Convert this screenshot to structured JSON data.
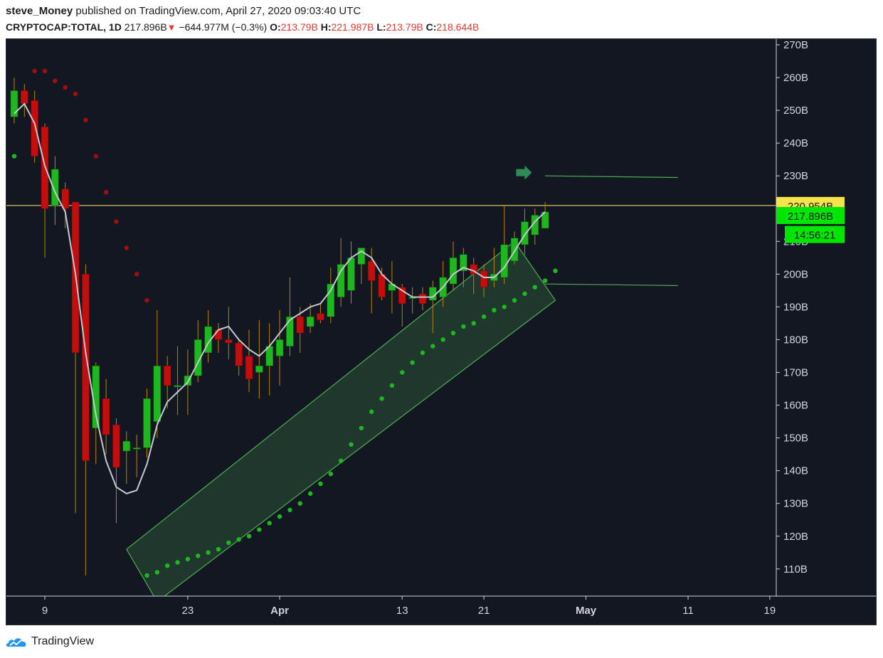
{
  "header": {
    "author": "steve_Money",
    "published_text": "published on TradingView.com, April 27, 2020 09:03:40 UTC",
    "symbol": "CRYPTOCAP:TOTAL, 1D",
    "last": "217.896B",
    "down_arrow": "▼",
    "change": "−644.977M (−0.3%)",
    "o_label": "O:",
    "o_value": "213.79B",
    "h_label": "H:",
    "h_value": "221.987B",
    "l_label": "L:",
    "l_value": "213.79B",
    "c_label": "C:",
    "c_value": "218.644B"
  },
  "footer": {
    "brand": "TradingView",
    "logo_icon": "tradingview-cloud-icon"
  },
  "chart_data": {
    "type": "candlestick",
    "y_unit": "B",
    "ylim": [
      102,
      272
    ],
    "y_ticks": [
      "110B",
      "120B",
      "130B",
      "140B",
      "150B",
      "160B",
      "170B",
      "180B",
      "190B",
      "200B",
      "210B",
      "220B",
      "230B",
      "240B",
      "250B",
      "260B",
      "270B"
    ],
    "x_ticks": [
      "9",
      "23",
      "Apr",
      "13",
      "21",
      "May",
      "11",
      "19"
    ],
    "x_dates": [
      "2020-03-09",
      "2020-03-23",
      "2020-04-01",
      "2020-04-13",
      "2020-04-21",
      "2020-05-01",
      "2020-05-11",
      "2020-05-19"
    ],
    "candles": [
      {
        "date": "2020-03-06",
        "o": 248,
        "h": 260,
        "l": 246,
        "c": 256
      },
      {
        "date": "2020-03-07",
        "o": 256,
        "h": 258,
        "l": 248,
        "c": 252
      },
      {
        "date": "2020-03-08",
        "o": 253,
        "h": 256,
        "l": 234,
        "c": 236
      },
      {
        "date": "2020-03-09",
        "o": 245,
        "h": 246,
        "l": 205,
        "c": 220
      },
      {
        "date": "2020-03-10",
        "o": 221,
        "h": 236,
        "l": 215,
        "c": 232
      },
      {
        "date": "2020-03-11",
        "o": 226,
        "h": 228,
        "l": 214,
        "c": 220
      },
      {
        "date": "2020-03-12",
        "o": 222,
        "h": 222,
        "l": 127,
        "c": 176
      },
      {
        "date": "2020-03-13",
        "o": 200,
        "h": 203,
        "l": 108,
        "c": 143
      },
      {
        "date": "2020-03-14",
        "o": 153,
        "h": 173,
        "l": 142,
        "c": 172
      },
      {
        "date": "2020-03-15",
        "o": 162,
        "h": 168,
        "l": 145,
        "c": 151
      },
      {
        "date": "2020-03-16",
        "o": 154,
        "h": 156,
        "l": 124,
        "c": 141
      },
      {
        "date": "2020-03-17",
        "o": 146,
        "h": 152,
        "l": 136,
        "c": 149
      },
      {
        "date": "2020-03-18",
        "o": 147,
        "h": 151,
        "l": 138,
        "c": 147
      },
      {
        "date": "2020-03-19",
        "o": 147,
        "h": 165,
        "l": 144,
        "c": 162
      },
      {
        "date": "2020-03-20",
        "o": 155,
        "h": 189,
        "l": 150,
        "c": 172
      },
      {
        "date": "2020-03-21",
        "o": 172,
        "h": 175,
        "l": 159,
        "c": 166
      },
      {
        "date": "2020-03-22",
        "o": 166,
        "h": 178,
        "l": 157,
        "c": 166
      },
      {
        "date": "2020-03-23",
        "o": 166,
        "h": 177,
        "l": 157,
        "c": 169
      },
      {
        "date": "2020-03-24",
        "o": 169,
        "h": 186,
        "l": 167,
        "c": 180
      },
      {
        "date": "2020-03-25",
        "o": 176,
        "h": 189,
        "l": 173,
        "c": 184
      },
      {
        "date": "2020-03-26",
        "o": 183,
        "h": 185,
        "l": 176,
        "c": 180
      },
      {
        "date": "2020-03-27",
        "o": 180,
        "h": 190,
        "l": 174,
        "c": 179
      },
      {
        "date": "2020-03-28",
        "o": 179,
        "h": 180,
        "l": 169,
        "c": 172
      },
      {
        "date": "2020-03-29",
        "o": 175,
        "h": 183,
        "l": 164,
        "c": 168
      },
      {
        "date": "2020-03-30",
        "o": 170,
        "h": 186,
        "l": 162,
        "c": 172
      },
      {
        "date": "2020-03-31",
        "o": 172,
        "h": 185,
        "l": 163,
        "c": 178
      },
      {
        "date": "2020-04-01",
        "o": 175,
        "h": 189,
        "l": 166,
        "c": 180
      },
      {
        "date": "2020-04-02",
        "o": 178,
        "h": 199,
        "l": 175,
        "c": 187
      },
      {
        "date": "2020-04-03",
        "o": 187,
        "h": 190,
        "l": 176,
        "c": 182
      },
      {
        "date": "2020-04-04",
        "o": 184,
        "h": 191,
        "l": 182,
        "c": 187
      },
      {
        "date": "2020-04-05",
        "o": 188,
        "h": 191,
        "l": 185,
        "c": 186
      },
      {
        "date": "2020-04-06",
        "o": 187,
        "h": 202,
        "l": 185,
        "c": 197
      },
      {
        "date": "2020-04-07",
        "o": 193,
        "h": 211,
        "l": 190,
        "c": 203
      },
      {
        "date": "2020-04-08",
        "o": 195,
        "h": 210,
        "l": 191,
        "c": 205
      },
      {
        "date": "2020-04-09",
        "o": 203,
        "h": 208,
        "l": 197,
        "c": 208
      },
      {
        "date": "2020-04-10",
        "o": 204,
        "h": 208,
        "l": 188,
        "c": 198
      },
      {
        "date": "2020-04-11",
        "o": 200,
        "h": 202,
        "l": 192,
        "c": 193
      },
      {
        "date": "2020-04-12",
        "o": 195,
        "h": 204,
        "l": 188,
        "c": 197
      },
      {
        "date": "2020-04-13",
        "o": 196,
        "h": 197,
        "l": 184,
        "c": 191
      },
      {
        "date": "2020-04-14",
        "o": 193,
        "h": 196,
        "l": 188,
        "c": 193
      },
      {
        "date": "2020-04-15",
        "o": 194,
        "h": 196,
        "l": 189,
        "c": 191
      },
      {
        "date": "2020-04-16",
        "o": 192,
        "h": 198,
        "l": 182,
        "c": 196
      },
      {
        "date": "2020-04-17",
        "o": 193,
        "h": 204,
        "l": 190,
        "c": 199
      },
      {
        "date": "2020-04-18",
        "o": 197,
        "h": 210,
        "l": 195,
        "c": 205
      },
      {
        "date": "2020-04-19",
        "o": 201,
        "h": 208,
        "l": 196,
        "c": 206
      },
      {
        "date": "2020-04-20",
        "o": 203,
        "h": 205,
        "l": 194,
        "c": 200
      },
      {
        "date": "2020-04-21",
        "o": 201,
        "h": 203,
        "l": 193,
        "c": 196
      },
      {
        "date": "2020-04-22",
        "o": 198,
        "h": 208,
        "l": 196,
        "c": 200
      },
      {
        "date": "2020-04-23",
        "o": 199,
        "h": 221,
        "l": 197,
        "c": 209
      },
      {
        "date": "2020-04-24",
        "o": 204,
        "h": 213,
        "l": 203,
        "c": 211
      },
      {
        "date": "2020-04-25",
        "o": 209,
        "h": 220,
        "l": 206,
        "c": 216
      },
      {
        "date": "2020-04-26",
        "o": 212,
        "h": 220,
        "l": 209,
        "c": 218
      },
      {
        "date": "2020-04-27",
        "o": 214,
        "h": 222,
        "l": 214,
        "c": 219
      }
    ],
    "sma_line": [
      {
        "date": "2020-03-06",
        "v": 249
      },
      {
        "date": "2020-03-07",
        "v": 252
      },
      {
        "date": "2020-03-08",
        "v": 246
      },
      {
        "date": "2020-03-09",
        "v": 233
      },
      {
        "date": "2020-03-10",
        "v": 225
      },
      {
        "date": "2020-03-11",
        "v": 219
      },
      {
        "date": "2020-03-12",
        "v": 200
      },
      {
        "date": "2020-03-13",
        "v": 176
      },
      {
        "date": "2020-03-14",
        "v": 157
      },
      {
        "date": "2020-03-15",
        "v": 143
      },
      {
        "date": "2020-03-16",
        "v": 135
      },
      {
        "date": "2020-03-17",
        "v": 133
      },
      {
        "date": "2020-03-18",
        "v": 134
      },
      {
        "date": "2020-03-19",
        "v": 142
      },
      {
        "date": "2020-03-20",
        "v": 154
      },
      {
        "date": "2020-03-21",
        "v": 161
      },
      {
        "date": "2020-03-22",
        "v": 164
      },
      {
        "date": "2020-03-23",
        "v": 167
      },
      {
        "date": "2020-03-24",
        "v": 173
      },
      {
        "date": "2020-03-25",
        "v": 179
      },
      {
        "date": "2020-03-26",
        "v": 183
      },
      {
        "date": "2020-03-27",
        "v": 184
      },
      {
        "date": "2020-03-28",
        "v": 180
      },
      {
        "date": "2020-03-29",
        "v": 177
      },
      {
        "date": "2020-03-30",
        "v": 175
      },
      {
        "date": "2020-03-31",
        "v": 178
      },
      {
        "date": "2020-04-01",
        "v": 182
      },
      {
        "date": "2020-04-02",
        "v": 186
      },
      {
        "date": "2020-04-03",
        "v": 188
      },
      {
        "date": "2020-04-04",
        "v": 190
      },
      {
        "date": "2020-04-05",
        "v": 191
      },
      {
        "date": "2020-04-06",
        "v": 195
      },
      {
        "date": "2020-04-07",
        "v": 201
      },
      {
        "date": "2020-04-08",
        "v": 205
      },
      {
        "date": "2020-04-09",
        "v": 207
      },
      {
        "date": "2020-04-10",
        "v": 205
      },
      {
        "date": "2020-04-11",
        "v": 200
      },
      {
        "date": "2020-04-12",
        "v": 197
      },
      {
        "date": "2020-04-13",
        "v": 195
      },
      {
        "date": "2020-04-14",
        "v": 193
      },
      {
        "date": "2020-04-15",
        "v": 193
      },
      {
        "date": "2020-04-16",
        "v": 193
      },
      {
        "date": "2020-04-17",
        "v": 196
      },
      {
        "date": "2020-04-18",
        "v": 200
      },
      {
        "date": "2020-04-19",
        "v": 202
      },
      {
        "date": "2020-04-20",
        "v": 201
      },
      {
        "date": "2020-04-21",
        "v": 199
      },
      {
        "date": "2020-04-22",
        "v": 199
      },
      {
        "date": "2020-04-23",
        "v": 202
      },
      {
        "date": "2020-04-24",
        "v": 207
      },
      {
        "date": "2020-04-25",
        "v": 212
      },
      {
        "date": "2020-04-26",
        "v": 216
      },
      {
        "date": "2020-04-27",
        "v": 219
      }
    ],
    "parabolic_sar_red": [
      {
        "date": "2020-03-08",
        "v": 262
      },
      {
        "date": "2020-03-09",
        "v": 262
      },
      {
        "date": "2020-03-10",
        "v": 259
      },
      {
        "date": "2020-03-11",
        "v": 257
      },
      {
        "date": "2020-03-12",
        "v": 255
      },
      {
        "date": "2020-03-13",
        "v": 247
      },
      {
        "date": "2020-03-14",
        "v": 236
      },
      {
        "date": "2020-03-15",
        "v": 225
      },
      {
        "date": "2020-03-16",
        "v": 216
      },
      {
        "date": "2020-03-17",
        "v": 208
      },
      {
        "date": "2020-03-18",
        "v": 200
      },
      {
        "date": "2020-03-19",
        "v": 192
      }
    ],
    "parabolic_sar_green": [
      {
        "date": "2020-03-05",
        "v": 235
      },
      {
        "date": "2020-03-06",
        "v": 236
      },
      {
        "date": "2020-03-19",
        "v": 108
      },
      {
        "date": "2020-03-20",
        "v": 109
      },
      {
        "date": "2020-03-21",
        "v": 111
      },
      {
        "date": "2020-03-22",
        "v": 112
      },
      {
        "date": "2020-03-23",
        "v": 113
      },
      {
        "date": "2020-03-24",
        "v": 114
      },
      {
        "date": "2020-03-25",
        "v": 115
      },
      {
        "date": "2020-03-26",
        "v": 116
      },
      {
        "date": "2020-03-27",
        "v": 118
      },
      {
        "date": "2020-03-28",
        "v": 119
      },
      {
        "date": "2020-03-29",
        "v": 120
      },
      {
        "date": "2020-03-30",
        "v": 122
      },
      {
        "date": "2020-03-31",
        "v": 124
      },
      {
        "date": "2020-04-01",
        "v": 126
      },
      {
        "date": "2020-04-02",
        "v": 128
      },
      {
        "date": "2020-04-03",
        "v": 130
      },
      {
        "date": "2020-04-04",
        "v": 133
      },
      {
        "date": "2020-04-05",
        "v": 136
      },
      {
        "date": "2020-04-06",
        "v": 139
      },
      {
        "date": "2020-04-07",
        "v": 143
      },
      {
        "date": "2020-04-08",
        "v": 148
      },
      {
        "date": "2020-04-09",
        "v": 153
      },
      {
        "date": "2020-04-10",
        "v": 158
      },
      {
        "date": "2020-04-11",
        "v": 162
      },
      {
        "date": "2020-04-12",
        "v": 166
      },
      {
        "date": "2020-04-13",
        "v": 170
      },
      {
        "date": "2020-04-14",
        "v": 173
      },
      {
        "date": "2020-04-15",
        "v": 176
      },
      {
        "date": "2020-04-16",
        "v": 178
      },
      {
        "date": "2020-04-17",
        "v": 180
      },
      {
        "date": "2020-04-18",
        "v": 182
      },
      {
        "date": "2020-04-19",
        "v": 184
      },
      {
        "date": "2020-04-20",
        "v": 185
      },
      {
        "date": "2020-04-21",
        "v": 187
      },
      {
        "date": "2020-04-22",
        "v": 189
      },
      {
        "date": "2020-04-23",
        "v": 190
      },
      {
        "date": "2020-04-24",
        "v": 192
      },
      {
        "date": "2020-04-25",
        "v": 194
      },
      {
        "date": "2020-04-26",
        "v": 196
      },
      {
        "date": "2020-04-27",
        "v": 198
      },
      {
        "date": "2020-04-28",
        "v": 201
      }
    ],
    "horizontal_line": {
      "value": 220.954,
      "label": "220.954B",
      "color": "#d6c45a"
    },
    "last_price_label": {
      "value": 217.896,
      "label": "217.896B",
      "color": "#00e600"
    },
    "countdown_label": "14:56:21",
    "channel": {
      "upper": [
        {
          "date": "2020-03-17",
          "v": 116
        },
        {
          "date": "2020-04-24",
          "v": 210
        }
      ],
      "lower": [
        {
          "date": "2020-03-20",
          "v": 100
        },
        {
          "date": "2020-04-28",
          "v": 192
        }
      ],
      "color": "#4caf50"
    },
    "annotations": {
      "arrow_icon": "right-arrow-icon",
      "arrow": {
        "date": "2020-04-25",
        "v": 231
      },
      "target_line": [
        {
          "date": "2020-04-27",
          "v": 230
        },
        {
          "date": "2020-05-10",
          "v": 229.5
        }
      ],
      "support_line": [
        {
          "date": "2020-04-27",
          "v": 197
        },
        {
          "date": "2020-05-10",
          "v": 196.5
        }
      ]
    },
    "colors": {
      "background": "#131722",
      "up": "#1fb71f",
      "down": "#c40d0d",
      "sma": "#c7c7d1",
      "sar_red": "#a00f0f",
      "sar_green": "#1fb71f"
    }
  }
}
